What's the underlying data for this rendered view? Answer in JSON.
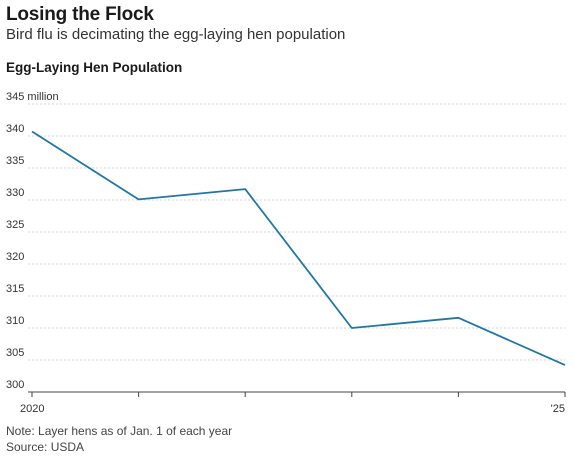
{
  "header": {
    "title": "Losing the Flock",
    "subtitle": "Bird flu is decimating the egg-laying hen population"
  },
  "footer": {
    "note": "Note: Layer hens as of Jan. 1 of each year",
    "source": "Source: USDA"
  },
  "chart_data": {
    "type": "line",
    "title": "Egg-Laying Hen Population",
    "xlabel": "",
    "ylabel": "",
    "x": [
      2020,
      2021,
      2022,
      2023,
      2024,
      2025
    ],
    "x_tick_labels": [
      "2020",
      "",
      "",
      "",
      "",
      "'25"
    ],
    "series": [
      {
        "values": [
          340.7,
          330.1,
          331.7,
          310.0,
          311.6,
          304.2
        ],
        "color": "#1f77a8"
      }
    ],
    "ylim": [
      300,
      345
    ],
    "y_ticks": [
      300,
      305,
      310,
      315,
      320,
      325,
      330,
      335,
      340,
      345
    ],
    "y_tick_labels": [
      "300",
      "305",
      "310",
      "315",
      "320",
      "325",
      "330",
      "335",
      "340",
      "345 million"
    ],
    "grid": true,
    "colors": {
      "line": "#1f77a8",
      "grid": "#d5d5d5",
      "axis": "#444444"
    }
  }
}
